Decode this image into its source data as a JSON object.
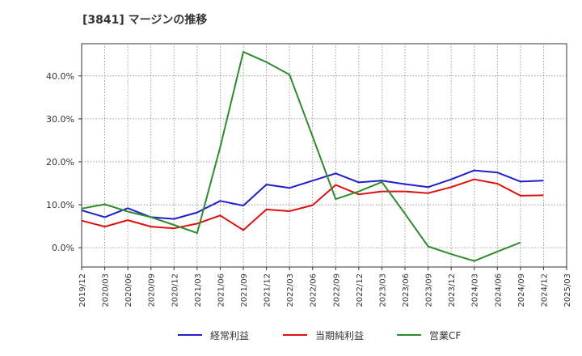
{
  "title": "[3841]  マージンの推移",
  "chart_data": {
    "type": "line",
    "title": "[3841]  マージンの推移",
    "x": [
      "2019/12",
      "2020/03",
      "2020/06",
      "2020/09",
      "2020/12",
      "2021/03",
      "2021/06",
      "2021/09",
      "2021/12",
      "2022/03",
      "2022/06",
      "2022/09",
      "2022/12",
      "2023/03",
      "2023/06",
      "2023/09",
      "2023/12",
      "2024/03",
      "2024/06",
      "2024/09",
      "2024/12",
      "2025/03"
    ],
    "yticks": [
      0.0,
      10.0,
      20.0,
      30.0,
      40.0
    ],
    "ytick_labels": [
      "0.0%",
      "10.0%",
      "20.0%",
      "30.0%",
      "40.0%"
    ],
    "ylim": [
      -4.5,
      47.5
    ],
    "grid": true,
    "legend_position": "bottom",
    "series": [
      {
        "name": "経常利益",
        "color": "#1f1fcc",
        "values": [
          8.7,
          7.1,
          9.2,
          7.1,
          6.7,
          8.2,
          10.9,
          9.8,
          14.7,
          13.9,
          15.6,
          17.3,
          15.2,
          15.6,
          14.8,
          14.1,
          15.9,
          18.0,
          17.5,
          15.4,
          15.6,
          null
        ]
      },
      {
        "name": "当期純利益",
        "color": "#dd1111",
        "values": [
          6.3,
          4.9,
          6.4,
          4.9,
          4.5,
          5.6,
          7.5,
          4.1,
          8.9,
          8.5,
          9.9,
          14.6,
          12.4,
          13.1,
          13.1,
          12.7,
          14.1,
          15.9,
          14.9,
          12.1,
          12.2,
          null
        ]
      },
      {
        "name": "営業CF",
        "color": "#2e8b2e",
        "values": [
          9.1,
          10.1,
          8.4,
          7.1,
          5.3,
          3.4,
          23.4,
          45.6,
          43.2,
          40.3,
          25.9,
          11.3,
          13.1,
          15.3,
          7.9,
          0.3,
          -1.5,
          -3.1,
          -0.9,
          1.2,
          null,
          null
        ]
      }
    ]
  }
}
